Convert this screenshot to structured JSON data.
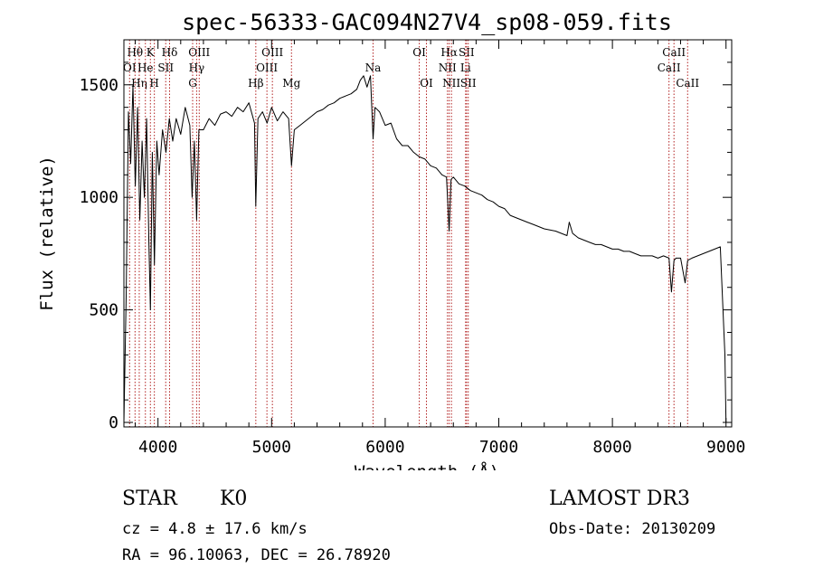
{
  "chart_data": {
    "type": "line",
    "title": "spec-56333-GAC094N27V4_sp08-059.fits",
    "xlabel": "Wavelength (Å)",
    "ylabel": "Flux (relative)",
    "xlim": [
      3700,
      9050
    ],
    "ylim": [
      -20,
      1700
    ],
    "xticks": [
      4000,
      5000,
      6000,
      7000,
      8000,
      9000
    ],
    "yticks": [
      0,
      500,
      1000,
      1500
    ],
    "grid": false,
    "series": [
      {
        "name": "flux",
        "x": [
          3700,
          3720,
          3740,
          3760,
          3780,
          3800,
          3820,
          3840,
          3860,
          3880,
          3900,
          3920,
          3933,
          3950,
          3968,
          3990,
          4010,
          4040,
          4070,
          4100,
          4130,
          4160,
          4200,
          4240,
          4280,
          4300,
          4320,
          4340,
          4360,
          4400,
          4450,
          4500,
          4550,
          4600,
          4650,
          4700,
          4750,
          4800,
          4850,
          4861,
          4880,
          4920,
          4960,
          5000,
          5050,
          5100,
          5150,
          5175,
          5200,
          5250,
          5300,
          5350,
          5400,
          5450,
          5500,
          5550,
          5600,
          5650,
          5700,
          5750,
          5780,
          5810,
          5840,
          5870,
          5893,
          5910,
          5950,
          6000,
          6050,
          6100,
          6150,
          6200,
          6250,
          6300,
          6350,
          6400,
          6450,
          6500,
          6540,
          6563,
          6580,
          6600,
          6650,
          6700,
          6750,
          6800,
          6850,
          6900,
          6950,
          7000,
          7050,
          7100,
          7150,
          7200,
          7250,
          7300,
          7350,
          7400,
          7450,
          7500,
          7550,
          7600,
          7620,
          7650,
          7700,
          7750,
          7800,
          7850,
          7900,
          7950,
          8000,
          8050,
          8100,
          8150,
          8200,
          8250,
          8300,
          8350,
          8400,
          8450,
          8498,
          8520,
          8542,
          8560,
          8600,
          8640,
          8662,
          8700,
          8750,
          8800,
          8850,
          8900,
          8950,
          8990,
          9000
        ],
        "y": [
          0,
          560,
          1380,
          1150,
          1500,
          1050,
          1400,
          900,
          1250,
          1000,
          1350,
          800,
          500,
          1200,
          700,
          1250,
          1100,
          1300,
          1200,
          1350,
          1250,
          1350,
          1280,
          1400,
          1320,
          1000,
          1250,
          900,
          1300,
          1300,
          1350,
          1320,
          1370,
          1380,
          1360,
          1400,
          1380,
          1420,
          1330,
          960,
          1350,
          1380,
          1330,
          1400,
          1340,
          1380,
          1350,
          1140,
          1300,
          1320,
          1340,
          1360,
          1380,
          1390,
          1410,
          1420,
          1440,
          1450,
          1460,
          1480,
          1520,
          1540,
          1490,
          1540,
          1260,
          1400,
          1380,
          1320,
          1330,
          1260,
          1230,
          1230,
          1200,
          1180,
          1170,
          1140,
          1130,
          1100,
          1090,
          850,
          1080,
          1090,
          1060,
          1050,
          1030,
          1020,
          1010,
          990,
          980,
          960,
          950,
          920,
          910,
          900,
          890,
          880,
          870,
          860,
          855,
          850,
          840,
          830,
          890,
          840,
          820,
          810,
          800,
          790,
          790,
          780,
          770,
          770,
          760,
          760,
          750,
          740,
          740,
          740,
          730,
          740,
          730,
          580,
          720,
          730,
          730,
          620,
          720,
          730,
          740,
          750,
          760,
          770,
          780,
          300,
          0
        ]
      }
    ],
    "line_markers": [
      {
        "label": "Hθ",
        "wl": 3798,
        "row": 0
      },
      {
        "label": "OI",
        "wl": 3750,
        "row": 1
      },
      {
        "label": "Hη",
        "wl": 3835,
        "row": 2
      },
      {
        "label": "He",
        "wl": 3889,
        "row": 1
      },
      {
        "label": "K",
        "wl": 3933,
        "row": 0
      },
      {
        "label": "H",
        "wl": 3968,
        "row": 2
      },
      {
        "label": "SII",
        "wl": 4068,
        "row": 1
      },
      {
        "label": "Hδ",
        "wl": 4102,
        "row": 0
      },
      {
        "label": "OIII",
        "wl": 4363,
        "row": 0
      },
      {
        "label": "Hγ",
        "wl": 4340,
        "row": 1
      },
      {
        "label": "G",
        "wl": 4305,
        "row": 2
      },
      {
        "label": "Hβ",
        "wl": 4861,
        "row": 2
      },
      {
        "label": "OIII",
        "wl": 4959,
        "row": 1
      },
      {
        "label": "OIII",
        "wl": 5007,
        "row": 0
      },
      {
        "label": "Mg",
        "wl": 5175,
        "row": 2
      },
      {
        "label": "Na",
        "wl": 5893,
        "row": 1
      },
      {
        "label": "OI",
        "wl": 6300,
        "row": 0
      },
      {
        "label": "OI",
        "wl": 6363,
        "row": 2
      },
      {
        "label": "NII",
        "wl": 6548,
        "row": 1
      },
      {
        "label": "Hα",
        "wl": 6563,
        "row": 0
      },
      {
        "label": "NII",
        "wl": 6583,
        "row": 2
      },
      {
        "label": "SII",
        "wl": 6716,
        "row": 0
      },
      {
        "label": "Li",
        "wl": 6708,
        "row": 1
      },
      {
        "label": "SII",
        "wl": 6731,
        "row": 2
      },
      {
        "label": "CaII",
        "wl": 8498,
        "row": 1
      },
      {
        "label": "CaII",
        "wl": 8542,
        "row": 0
      },
      {
        "label": "CaII",
        "wl": 8662,
        "row": 2
      }
    ]
  },
  "info": {
    "object_type": "STAR",
    "subclass": "K0",
    "cz": "cz = 4.8 ± 17.6 km/s",
    "radec": "RA =  96.10063, DEC =  26.78920",
    "survey": "LAMOST DR3",
    "obs_date": "Obs-Date: 20130209"
  },
  "colors": {
    "marker": "#b22222",
    "spectrum": "#000000",
    "axes": "#000000"
  }
}
